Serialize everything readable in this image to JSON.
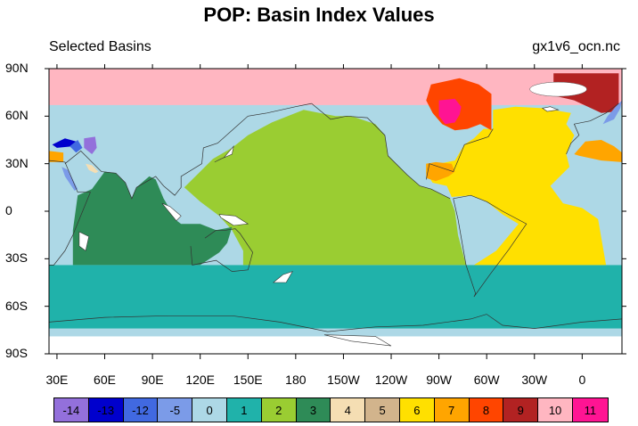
{
  "title": "POP: Basin Index Values",
  "subtitle_left": "Selected Basins",
  "subtitle_right": "gx1v6_ocn.nc",
  "lat_ticks": [
    {
      "label": "90N",
      "lat": 90
    },
    {
      "label": "60N",
      "lat": 60
    },
    {
      "label": "30N",
      "lat": 30
    },
    {
      "label": "0",
      "lat": 0
    },
    {
      "label": "30S",
      "lat": -30
    },
    {
      "label": "60S",
      "lat": -60
    },
    {
      "label": "90S",
      "lat": -90
    }
  ],
  "lon_ticks": [
    {
      "label": "30E",
      "lon": 30
    },
    {
      "label": "60E",
      "lon": 60
    },
    {
      "label": "90E",
      "lon": 90
    },
    {
      "label": "120E",
      "lon": 120
    },
    {
      "label": "150E",
      "lon": 150
    },
    {
      "label": "180",
      "lon": 180
    },
    {
      "label": "150W",
      "lon": 210
    },
    {
      "label": "120W",
      "lon": 240
    },
    {
      "label": "90W",
      "lon": 270
    },
    {
      "label": "60W",
      "lon": 300
    },
    {
      "label": "30W",
      "lon": 330
    },
    {
      "label": "0",
      "lon": 360
    }
  ],
  "map_extent": {
    "lon_min": 25,
    "lon_max": 385,
    "lat_min": -90,
    "lat_max": 90
  },
  "legend": [
    {
      "label": "-14",
      "color": "#9370DB"
    },
    {
      "label": "-13",
      "color": "#0000CD"
    },
    {
      "label": "-12",
      "color": "#4169E1"
    },
    {
      "label": "-5",
      "color": "#7B9BE8"
    },
    {
      "label": "0",
      "color": "#ADD8E6"
    },
    {
      "label": "1",
      "color": "#20B2AA"
    },
    {
      "label": "2",
      "color": "#9ACD32"
    },
    {
      "label": "3",
      "color": "#2E8B57"
    },
    {
      "label": "4",
      "color": "#F5DEB3"
    },
    {
      "label": "5",
      "color": "#D2B48C"
    },
    {
      "label": "6",
      "color": "#FFE000"
    },
    {
      "label": "7",
      "color": "#FFA500"
    },
    {
      "label": "8",
      "color": "#FF4500"
    },
    {
      "label": "9",
      "color": "#B22222"
    },
    {
      "label": "10",
      "color": "#FFB6C1"
    },
    {
      "label": "11",
      "color": "#FF1493"
    }
  ],
  "land_color": "#FFFFFF"
}
